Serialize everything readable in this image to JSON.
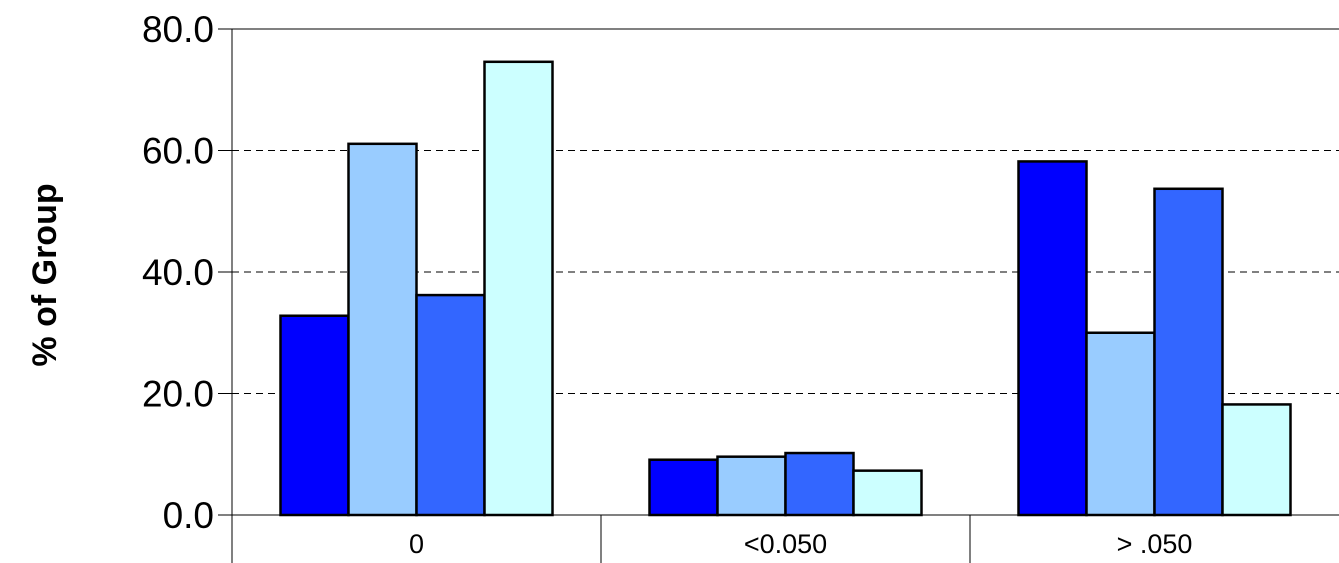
{
  "chart_data": {
    "type": "bar",
    "ylabel": "% of Group",
    "xlabel": "",
    "categories": [
      "0",
      "<0.050",
      "> .050"
    ],
    "ylim": [
      0,
      80
    ],
    "yticks": [
      "0.0",
      "20.0",
      "40.0",
      "60.0",
      "80.0"
    ],
    "grid": true,
    "legend": "none",
    "series": [
      {
        "color": "#0000ff",
        "values": [
          32.8,
          9.1,
          58.2
        ]
      },
      {
        "color": "#99ccff",
        "values": [
          61.1,
          9.6,
          30.0
        ]
      },
      {
        "color": "#3366ff",
        "values": [
          36.2,
          10.2,
          53.7
        ]
      },
      {
        "color": "#ccffff",
        "values": [
          74.6,
          7.3,
          18.2
        ]
      }
    ]
  }
}
